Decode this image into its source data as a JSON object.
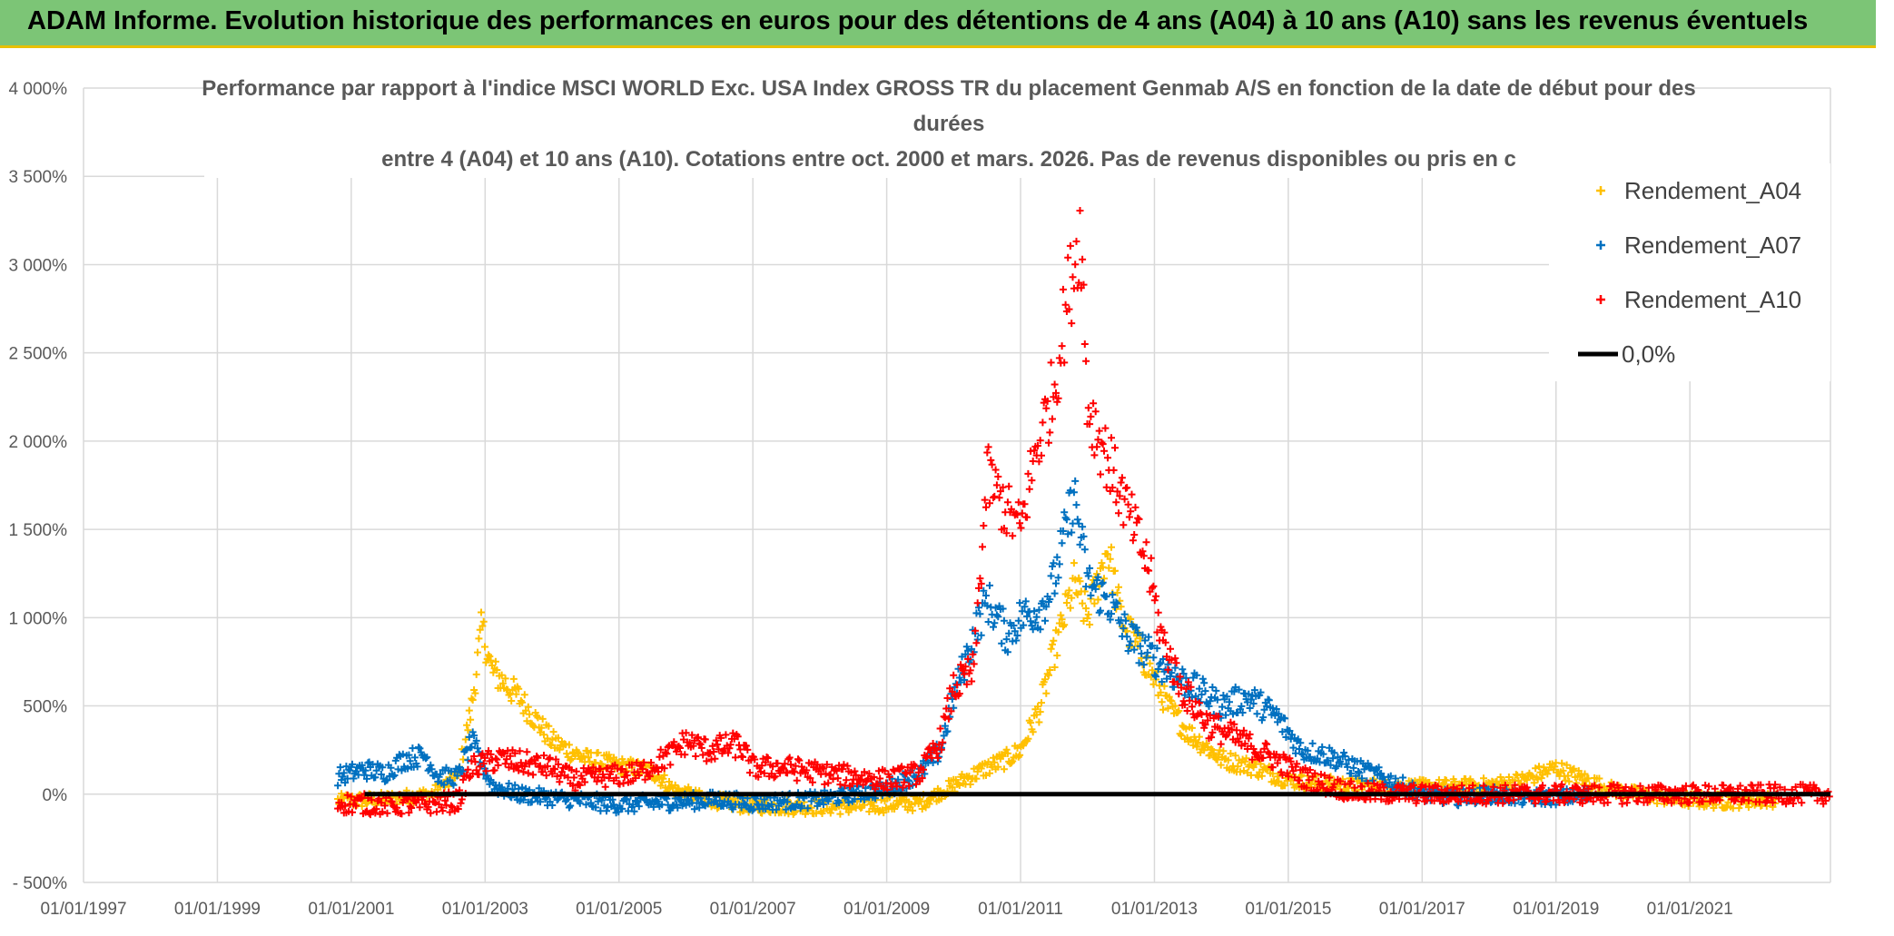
{
  "banner": {
    "title": "ADAM Informe. Evolution historique des performances en euros pour des détentions de 4 ans (A04) à 10 ans (A10) sans les revenus éventuels"
  },
  "chart_data": {
    "type": "scatter",
    "title_lines": [
      "Performance par rapport à l'indice MSCI WORLD Exc. USA Index GROSS TR  du placement Genmab A/S en fonction de la date de début pour des",
      "durées",
      "entre 4 (A04) et 10 ans (A10). Cotations entre oct. 2000 et mars. 2026. Pas de revenus disponibles ou pris en c"
    ],
    "xlabel": "",
    "ylabel": "",
    "x_range": [
      1997.0,
      2023.1
    ],
    "ylim": [
      -500,
      4000
    ],
    "y_ticks": [
      -500,
      0,
      500,
      1000,
      1500,
      2000,
      2500,
      3000,
      3500,
      4000
    ],
    "y_tick_labels": [
      "- 500%",
      "0%",
      "500%",
      "1 000%",
      "1 500%",
      "2 000%",
      "2 500%",
      "3 000%",
      "3 500%",
      "4 000%"
    ],
    "x_ticks": [
      1997,
      1999,
      2001,
      2003,
      2005,
      2007,
      2009,
      2011,
      2013,
      2015,
      2017,
      2019,
      2021
    ],
    "x_tick_labels": [
      "01/01/1997",
      "01/01/1999",
      "01/01/2001",
      "01/01/2003",
      "01/01/2005",
      "01/01/2007",
      "01/01/2009",
      "01/01/2011",
      "01/01/2013",
      "01/01/2015",
      "01/01/2017",
      "01/01/2019",
      "01/01/2021"
    ],
    "grid": true,
    "legend_position": "top-right",
    "series": [
      {
        "name": "Rendement_A04",
        "color": "#ffc000",
        "marker": "+",
        "x_start": 2000.8,
        "x_end": 2022.3,
        "knots": [
          [
            2000.8,
            -40
          ],
          [
            2001.5,
            -30
          ],
          [
            2002.2,
            0
          ],
          [
            2002.6,
            100
          ],
          [
            2002.8,
            500
          ],
          [
            2002.95,
            950
          ],
          [
            2003.1,
            700
          ],
          [
            2003.5,
            550
          ],
          [
            2004.0,
            300
          ],
          [
            2004.5,
            200
          ],
          [
            2005.0,
            160
          ],
          [
            2005.5,
            130
          ],
          [
            2005.8,
            30
          ],
          [
            2006.2,
            -20
          ],
          [
            2006.8,
            -60
          ],
          [
            2007.5,
            -70
          ],
          [
            2008.5,
            -70
          ],
          [
            2009.5,
            -50
          ],
          [
            2010.0,
            50
          ],
          [
            2010.5,
            150
          ],
          [
            2010.8,
            200
          ],
          [
            2011.0,
            250
          ],
          [
            2011.3,
            500
          ],
          [
            2011.5,
            800
          ],
          [
            2011.8,
            1200
          ],
          [
            2012.0,
            1000
          ],
          [
            2012.3,
            1400
          ],
          [
            2012.5,
            1000
          ],
          [
            2012.8,
            800
          ],
          [
            2013.2,
            500
          ],
          [
            2013.5,
            350
          ],
          [
            2014.0,
            200
          ],
          [
            2014.5,
            150
          ],
          [
            2015.0,
            80
          ],
          [
            2015.5,
            60
          ],
          [
            2016.0,
            50
          ],
          [
            2017.0,
            40
          ],
          [
            2018.0,
            50
          ],
          [
            2018.5,
            80
          ],
          [
            2019.0,
            150
          ],
          [
            2019.3,
            100
          ],
          [
            2019.8,
            30
          ],
          [
            2020.2,
            0
          ],
          [
            2020.8,
            -30
          ],
          [
            2021.5,
            -40
          ],
          [
            2022.3,
            -30
          ]
        ],
        "noise": 40
      },
      {
        "name": "Rendement_A07",
        "color": "#0070c0",
        "marker": "+",
        "x_start": 2000.8,
        "x_end": 2019.5,
        "knots": [
          [
            2000.8,
            100
          ],
          [
            2001.2,
            140
          ],
          [
            2001.5,
            120
          ],
          [
            2001.8,
            200
          ],
          [
            2002.1,
            220
          ],
          [
            2002.3,
            100
          ],
          [
            2002.6,
            100
          ],
          [
            2002.8,
            300
          ],
          [
            2002.95,
            180
          ],
          [
            2003.1,
            50
          ],
          [
            2003.5,
            0
          ],
          [
            2004.0,
            -20
          ],
          [
            2004.5,
            -40
          ],
          [
            2005.0,
            -60
          ],
          [
            2005.5,
            -50
          ],
          [
            2006.0,
            -40
          ],
          [
            2006.5,
            -30
          ],
          [
            2007.0,
            -50
          ],
          [
            2007.5,
            -40
          ],
          [
            2008.0,
            -30
          ],
          [
            2008.5,
            0
          ],
          [
            2009.0,
            30
          ],
          [
            2009.5,
            120
          ],
          [
            2009.8,
            250
          ],
          [
            2010.0,
            550
          ],
          [
            2010.3,
            900
          ],
          [
            2010.5,
            1100
          ],
          [
            2010.8,
            900
          ],
          [
            2011.0,
            1000
          ],
          [
            2011.3,
            1050
          ],
          [
            2011.5,
            1200
          ],
          [
            2011.8,
            1700
          ],
          [
            2012.0,
            1200
          ],
          [
            2012.3,
            1100
          ],
          [
            2012.6,
            900
          ],
          [
            2012.9,
            800
          ],
          [
            2013.2,
            700
          ],
          [
            2013.6,
            600
          ],
          [
            2014.0,
            500
          ],
          [
            2014.4,
            550
          ],
          [
            2014.8,
            450
          ],
          [
            2015.2,
            250
          ],
          [
            2015.6,
            220
          ],
          [
            2016.0,
            150
          ],
          [
            2016.5,
            80
          ],
          [
            2017.0,
            0
          ],
          [
            2017.5,
            -20
          ],
          [
            2018.0,
            0
          ],
          [
            2018.5,
            -20
          ],
          [
            2019.5,
            -10
          ]
        ],
        "noise": 45
      },
      {
        "name": "Rendement_A10",
        "color": "#ff0000",
        "marker": "+",
        "x_start": 2000.8,
        "x_end": 2023.1,
        "knots": [
          [
            2000.8,
            -50
          ],
          [
            2001.5,
            -60
          ],
          [
            2002.0,
            -60
          ],
          [
            2002.6,
            -40
          ],
          [
            2002.8,
            150
          ],
          [
            2003.2,
            200
          ],
          [
            2003.5,
            180
          ],
          [
            2004.0,
            150
          ],
          [
            2004.3,
            80
          ],
          [
            2004.8,
            100
          ],
          [
            2005.3,
            120
          ],
          [
            2005.8,
            230
          ],
          [
            2006.0,
            300
          ],
          [
            2006.3,
            250
          ],
          [
            2006.8,
            280
          ],
          [
            2007.0,
            150
          ],
          [
            2007.5,
            150
          ],
          [
            2008.0,
            120
          ],
          [
            2008.5,
            100
          ],
          [
            2009.0,
            80
          ],
          [
            2009.5,
            120
          ],
          [
            2009.8,
            300
          ],
          [
            2010.0,
            600
          ],
          [
            2010.3,
            700
          ],
          [
            2010.5,
            1800
          ],
          [
            2010.8,
            1600
          ],
          [
            2011.0,
            1500
          ],
          [
            2011.2,
            1900
          ],
          [
            2011.5,
            2300
          ],
          [
            2011.7,
            2800
          ],
          [
            2011.9,
            3200
          ],
          [
            2012.0,
            2200
          ],
          [
            2012.3,
            1900
          ],
          [
            2012.6,
            1600
          ],
          [
            2012.9,
            1300
          ],
          [
            2013.1,
            900
          ],
          [
            2013.4,
            600
          ],
          [
            2013.8,
            400
          ],
          [
            2014.3,
            300
          ],
          [
            2014.8,
            200
          ],
          [
            2015.2,
            100
          ],
          [
            2015.6,
            50
          ],
          [
            2016.0,
            10
          ],
          [
            2017.0,
            0
          ],
          [
            2023.1,
            0
          ]
        ],
        "noise": 55
      },
      {
        "name": "0,0%",
        "color": "#000000",
        "marker": "line",
        "x_start": 2001.2,
        "x_end": 2023.1,
        "knots": [
          [
            2001.2,
            0
          ],
          [
            2023.1,
            0
          ]
        ],
        "noise": 0
      }
    ]
  }
}
